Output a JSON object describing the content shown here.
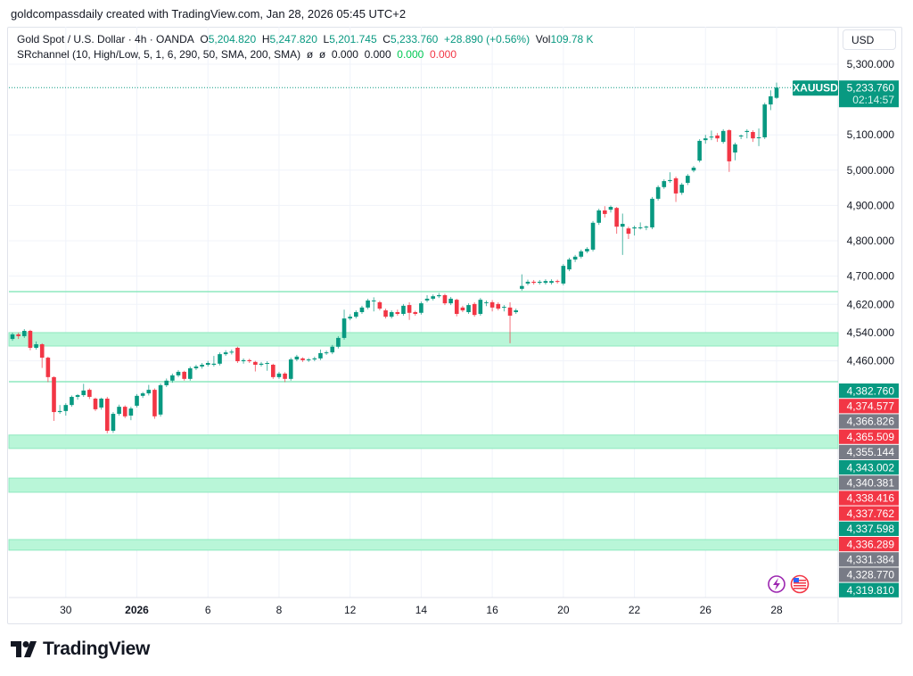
{
  "header": {
    "caption": "goldcompassdaily created with TradingView.com, Jan 28, 2026 05:45 UTC+2"
  },
  "legend": {
    "symbol": "Gold Spot / U.S. Dollar · 4h · OANDA",
    "o_label": "O",
    "o": "5,204.820",
    "h_label": "H",
    "h": "5,247.820",
    "l_label": "L",
    "l": "5,201.745",
    "c_label": "C",
    "c": "5,233.760",
    "change": "+28.890 (+0.56%)",
    "vol_label": "Vol",
    "vol": "109.78 K",
    "indicator": "SRchannel (10, High/Low, 5, 1, 6, 290, 50, SMA, 200, SMA)",
    "ind_vals": [
      "ø",
      "ø",
      "0.000",
      "0.000"
    ],
    "ind_green": "0.000",
    "ind_red": "0.000"
  },
  "currency_button": "USD",
  "last_price": {
    "symbol": "XAUUSD",
    "price": "5,233.760",
    "countdown": "02:14:57",
    "color": "#089981"
  },
  "colors": {
    "up": "#089981",
    "down": "#f23645",
    "neutral": "#787b86",
    "zone": "#b9f6d8",
    "zone_border": "#8ee8bf"
  },
  "price_labels": [
    {
      "text": "4,382.760",
      "color": "#089981"
    },
    {
      "text": "4,374.577",
      "color": "#f23645"
    },
    {
      "text": "4,366.826",
      "color": "#787b86"
    },
    {
      "text": "4,365.509",
      "color": "#f23645"
    },
    {
      "text": "4,355.144",
      "color": "#787b86"
    },
    {
      "text": "4,343.002",
      "color": "#089981"
    },
    {
      "text": "4,340.381",
      "color": "#787b86"
    },
    {
      "text": "4,338.416",
      "color": "#f23645"
    },
    {
      "text": "4,337.762",
      "color": "#f23645"
    },
    {
      "text": "4,337.598",
      "color": "#089981"
    },
    {
      "text": "4,336.289",
      "color": "#f23645"
    },
    {
      "text": "4,331.384",
      "color": "#787b86"
    },
    {
      "text": "4,328.770",
      "color": "#787b86"
    },
    {
      "text": "4,319.810",
      "color": "#089981"
    }
  ],
  "icons": [
    "lightning-icon",
    "us-flag-icon"
  ],
  "brand": "TradingView",
  "chart_data": {
    "type": "candlestick",
    "y_ticks": [
      5300,
      5100,
      5000,
      4900,
      4800,
      4700,
      4620,
      4540,
      4460
    ],
    "y_tick_labels": [
      "5,300.000",
      "5,100.000",
      "5,000.000",
      "4,900.000",
      "4,800.000",
      "4,700.000",
      "4,620.000",
      "4,540.000",
      "4,460.000"
    ],
    "x_tick_labels": [
      {
        "label": "30",
        "bar": 9,
        "bold": false
      },
      {
        "label": "2026",
        "bar": 21,
        "bold": true
      },
      {
        "label": "6",
        "bar": 33,
        "bold": false
      },
      {
        "label": "8",
        "bar": 45,
        "bold": false
      },
      {
        "label": "12",
        "bar": 57,
        "bold": false
      },
      {
        "label": "14",
        "bar": 69,
        "bold": false
      },
      {
        "label": "16",
        "bar": 81,
        "bold": false
      },
      {
        "label": "20",
        "bar": 93,
        "bold": false
      },
      {
        "label": "22",
        "bar": 105,
        "bold": false
      },
      {
        "label": "26",
        "bar": 117,
        "bold": false
      },
      {
        "label": "28",
        "bar": 129,
        "bold": false
      }
    ],
    "grid": true,
    "sr_zones": [
      [
        4502,
        4540
      ],
      [
        4212,
        4250
      ],
      [
        4088,
        4128
      ],
      [
        3924,
        3954
      ]
    ],
    "sr_lines": [
      4656,
      4401
    ],
    "last_close": 5233.76,
    "ohlc": [
      [
        4522,
        4540,
        4517,
        4535
      ],
      [
        4535,
        4540,
        4522,
        4530
      ],
      [
        4530,
        4550,
        4525,
        4545
      ],
      [
        4545,
        4548,
        4490,
        4497
      ],
      [
        4497,
        4515,
        4492,
        4507
      ],
      [
        4507,
        4510,
        4440,
        4469
      ],
      [
        4469,
        4472,
        4400,
        4414
      ],
      [
        4414,
        4416,
        4290,
        4315
      ],
      [
        4315,
        4335,
        4310,
        4318
      ],
      [
        4318,
        4340,
        4305,
        4335
      ],
      [
        4335,
        4362,
        4330,
        4358
      ],
      [
        4358,
        4366,
        4350,
        4363
      ],
      [
        4363,
        4395,
        4358,
        4376
      ],
      [
        4378,
        4382,
        4352,
        4358
      ],
      [
        4353,
        4356,
        4318,
        4323
      ],
      [
        4328,
        4356,
        4322,
        4353
      ],
      [
        4353,
        4358,
        4255,
        4262
      ],
      [
        4262,
        4315,
        4256,
        4310
      ],
      [
        4310,
        4336,
        4305,
        4330
      ],
      [
        4330,
        4334,
        4298,
        4303
      ],
      [
        4305,
        4330,
        4292,
        4325
      ],
      [
        4333,
        4366,
        4328,
        4361
      ],
      [
        4361,
        4372,
        4355,
        4368
      ],
      [
        4368,
        4392,
        4362,
        4378
      ],
      [
        4378,
        4382,
        4296,
        4303
      ],
      [
        4308,
        4396,
        4302,
        4391
      ],
      [
        4391,
        4410,
        4386,
        4404
      ],
      [
        4404,
        4424,
        4398,
        4419
      ],
      [
        4419,
        4434,
        4414,
        4429
      ],
      [
        4429,
        4432,
        4404,
        4409
      ],
      [
        4409,
        4444,
        4404,
        4439
      ],
      [
        4439,
        4449,
        4434,
        4444
      ],
      [
        4444,
        4454,
        4438,
        4449
      ],
      [
        4449,
        4460,
        4444,
        4454
      ],
      [
        4449,
        4474,
        4444,
        4452
      ],
      [
        4452,
        4484,
        4447,
        4479
      ],
      [
        4479,
        4490,
        4474,
        4484
      ],
      [
        4484,
        4492,
        4478,
        4486
      ],
      [
        4497,
        4500,
        4454,
        4459
      ],
      [
        4459,
        4467,
        4452,
        4462
      ],
      [
        4462,
        4466,
        4454,
        4459
      ],
      [
        4457,
        4460,
        4430,
        4449
      ],
      [
        4449,
        4457,
        4444,
        4452
      ],
      [
        4452,
        4459,
        4432,
        4454
      ],
      [
        4449,
        4452,
        4409,
        4414
      ],
      [
        4414,
        4429,
        4409,
        4424
      ],
      [
        4424,
        4428,
        4400,
        4409
      ],
      [
        4409,
        4469,
        4404,
        4464
      ],
      [
        4464,
        4477,
        4459,
        4472
      ],
      [
        4467,
        4470,
        4457,
        4462
      ],
      [
        4462,
        4468,
        4457,
        4464
      ],
      [
        4464,
        4472,
        4459,
        4467
      ],
      [
        4467,
        4492,
        4462,
        4482
      ],
      [
        4482,
        4489,
        4477,
        4484
      ],
      [
        4484,
        4505,
        4479,
        4500
      ],
      [
        4500,
        4530,
        4495,
        4525
      ],
      [
        4525,
        4605,
        4520,
        4580
      ],
      [
        4580,
        4592,
        4575,
        4585
      ],
      [
        4585,
        4603,
        4580,
        4598
      ],
      [
        4598,
        4616,
        4593,
        4611
      ],
      [
        4611,
        4636,
        4606,
        4631
      ],
      [
        4631,
        4640,
        4600,
        4631
      ],
      [
        4626,
        4630,
        4603,
        4608
      ],
      [
        4603,
        4608,
        4580,
        4585
      ],
      [
        4585,
        4603,
        4580,
        4598
      ],
      [
        4598,
        4605,
        4588,
        4593
      ],
      [
        4593,
        4621,
        4588,
        4616
      ],
      [
        4618,
        4626,
        4576,
        4596
      ],
      [
        4598,
        4602,
        4588,
        4593
      ],
      [
        4596,
        4628,
        4591,
        4623
      ],
      [
        4631,
        4646,
        4626,
        4636
      ],
      [
        4636,
        4648,
        4631,
        4643
      ],
      [
        4643,
        4652,
        4638,
        4646
      ],
      [
        4646,
        4650,
        4618,
        4623
      ],
      [
        4623,
        4641,
        4618,
        4636
      ],
      [
        4633,
        4636,
        4586,
        4593
      ],
      [
        4611,
        4616,
        4598,
        4603
      ],
      [
        4598,
        4623,
        4593,
        4618
      ],
      [
        4621,
        4626,
        4585,
        4590
      ],
      [
        4593,
        4638,
        4588,
        4633
      ],
      [
        4626,
        4631,
        4615,
        4626
      ],
      [
        4626,
        4632,
        4600,
        4611
      ],
      [
        4621,
        4626,
        4603,
        4608
      ],
      [
        4613,
        4618,
        4600,
        4613
      ],
      [
        4611,
        4626,
        4510,
        4588
      ],
      [
        4598,
        4608,
        4593,
        4603
      ],
      [
        4664,
        4705,
        4659,
        4672
      ],
      [
        4679,
        4690,
        4674,
        4684
      ],
      [
        4684,
        4689,
        4676,
        4681
      ],
      [
        4681,
        4689,
        4676,
        4684
      ],
      [
        4681,
        4691,
        4676,
        4686
      ],
      [
        4681,
        4691,
        4676,
        4686
      ],
      [
        4686,
        4690,
        4679,
        4684
      ],
      [
        4679,
        4734,
        4674,
        4729
      ],
      [
        4719,
        4752,
        4714,
        4747
      ],
      [
        4747,
        4760,
        4740,
        4755
      ],
      [
        4755,
        4775,
        4750,
        4770
      ],
      [
        4770,
        4782,
        4765,
        4777
      ],
      [
        4775,
        4856,
        4770,
        4851
      ],
      [
        4851,
        4891,
        4845,
        4886
      ],
      [
        4886,
        4898,
        4866,
        4876
      ],
      [
        4888,
        4900,
        4880,
        4896
      ],
      [
        4893,
        4896,
        4820,
        4840
      ],
      [
        4840,
        4877,
        4760,
        4848
      ],
      [
        4835,
        4840,
        4805,
        4820
      ],
      [
        4835,
        4843,
        4815,
        4838
      ],
      [
        4838,
        4852,
        4832,
        4838
      ],
      [
        4838,
        4843,
        4830,
        4840
      ],
      [
        4838,
        4924,
        4833,
        4919
      ],
      [
        4919,
        4957,
        4914,
        4952
      ],
      [
        4952,
        4974,
        4947,
        4969
      ],
      [
        4969,
        4994,
        4964,
        4972
      ],
      [
        4977,
        4982,
        4910,
        4934
      ],
      [
        4936,
        4964,
        4930,
        4959
      ],
      [
        4964,
        4989,
        4958,
        4984
      ],
      [
        4999,
        5012,
        4994,
        5007
      ],
      [
        5027,
        5088,
        5022,
        5083
      ],
      [
        5085,
        5100,
        5075,
        5090
      ],
      [
        5093,
        5112,
        5085,
        5095
      ],
      [
        5098,
        5105,
        5080,
        5090
      ],
      [
        5080,
        5116,
        5075,
        5111
      ],
      [
        5113,
        5116,
        4995,
        5025
      ],
      [
        5050,
        5078,
        5028,
        5073
      ],
      [
        5098,
        5101,
        5088,
        5098
      ],
      [
        5108,
        5116,
        5090,
        5111
      ],
      [
        5108,
        5113,
        5080,
        5090
      ],
      [
        5093,
        5118,
        5068,
        5093
      ],
      [
        5093,
        5191,
        5088,
        5186
      ],
      [
        5186,
        5226,
        5170,
        5209
      ],
      [
        5204.82,
        5247.82,
        5201.745,
        5233.76
      ]
    ]
  }
}
